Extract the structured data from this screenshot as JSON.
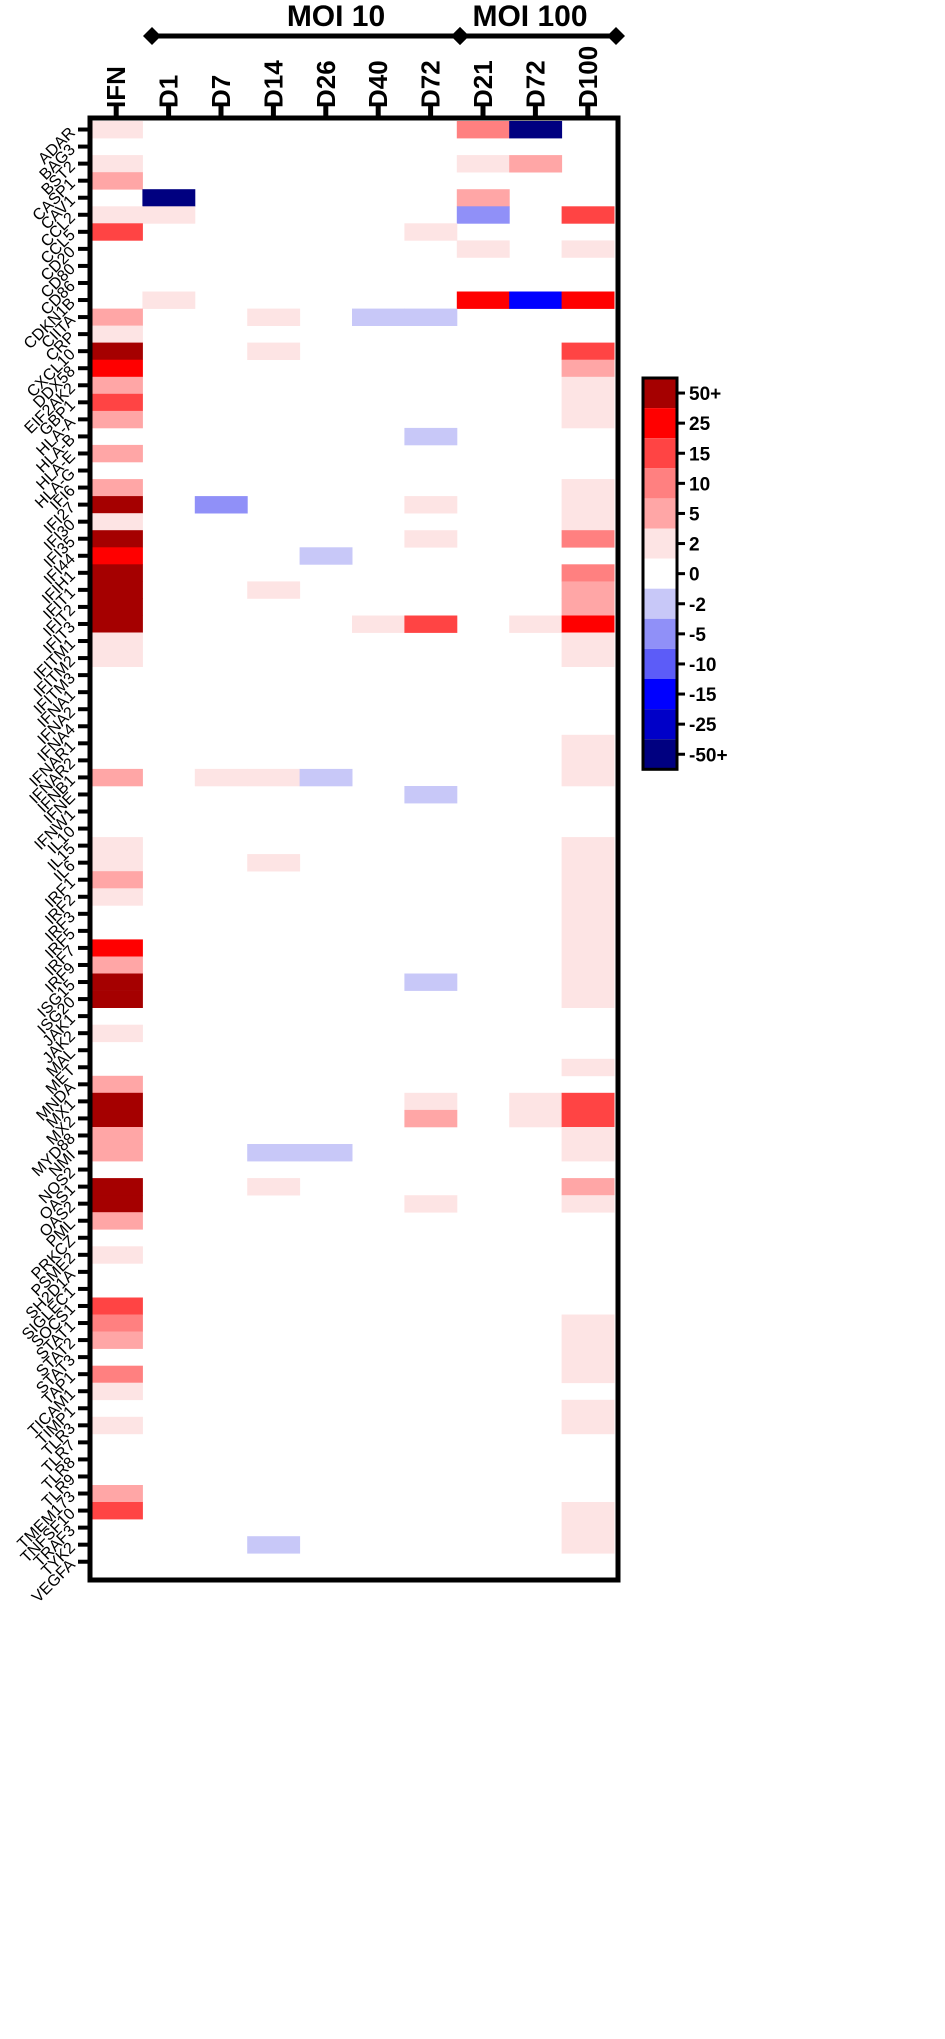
{
  "chart_data": {
    "type": "heatmap",
    "title": "",
    "xlabel": "",
    "ylabel": "",
    "groups": [
      {
        "label": "MOI 10",
        "columns": [
          "D1",
          "D7",
          "D14",
          "D26",
          "D40",
          "D72"
        ]
      },
      {
        "label": "MOI 100",
        "columns": [
          "D21",
          "D72",
          "D100"
        ]
      }
    ],
    "columns": [
      "IFN",
      "D1",
      "D7",
      "D14",
      "D26",
      "D40",
      "D72",
      "D21",
      "D72",
      "D100"
    ],
    "rows": [
      "ADAR",
      "BAG3",
      "BST2",
      "CASP1",
      "CAV1",
      "CCL2",
      "CCL5",
      "CD20",
      "CD80",
      "CD86",
      "CDKN1B",
      "CIITA",
      "CRP",
      "CXCL10",
      "DDX58",
      "EIF2AK2",
      "GBP1",
      "HLA-A",
      "HLA-B",
      "HLA-E",
      "HLA-G",
      "IFI6",
      "IFI27",
      "IFI30",
      "IFI35",
      "IFI44",
      "IFIH1",
      "IFIT1",
      "IFIT2",
      "IFIT3",
      "IFITM1",
      "IFITM2",
      "IFITM3",
      "IFNA1",
      "IFNA2",
      "IFNA4",
      "IFNAR1",
      "IFNAR2",
      "IFNB1",
      "IFNE",
      "IFNW1",
      "IL10",
      "IL15",
      "IL6",
      "IRF1",
      "IRF2",
      "IRF3",
      "IRF5",
      "IRF7",
      "IRF9",
      "ISG15",
      "ISG20",
      "JAK1",
      "JAK2",
      "MAL",
      "MET",
      "MNDA",
      "MX1",
      "MX2",
      "MYD88",
      "NMI",
      "NOS2",
      "OAS1",
      "OAS2",
      "PML",
      "PRKCZ",
      "PSME2",
      "SH2D1A",
      "SIGLEC1",
      "SOCS1",
      "STAT1",
      "STAT2",
      "STAT3",
      "TAP1",
      "TICAM1",
      "TIMP1",
      "TLR3",
      "TLR7",
      "TLR8",
      "TLR9",
      "TMEM173",
      "TNFSF10",
      "TRAF3",
      "TYK2",
      "VEGFA"
    ],
    "values": [
      [
        2,
        0,
        0,
        0,
        0,
        0,
        0,
        10,
        -50,
        0
      ],
      [
        0,
        0,
        0,
        0,
        0,
        0,
        0,
        0,
        0,
        0
      ],
      [
        2,
        0,
        0,
        0,
        0,
        0,
        0,
        2,
        5,
        0
      ],
      [
        5,
        0,
        0,
        0,
        0,
        0,
        0,
        0,
        0,
        0
      ],
      [
        0,
        -50,
        0,
        0,
        0,
        0,
        0,
        5,
        0,
        0
      ],
      [
        2,
        2,
        0,
        0,
        0,
        0,
        0,
        -5,
        0,
        15
      ],
      [
        15,
        0,
        0,
        0,
        0,
        0,
        2,
        0,
        0,
        0
      ],
      [
        0,
        0,
        0,
        0,
        0,
        0,
        0,
        2,
        0,
        2
      ],
      [
        0,
        0,
        0,
        0,
        0,
        0,
        0,
        0,
        0,
        0
      ],
      [
        0,
        0,
        0,
        0,
        0,
        0,
        0,
        0,
        0,
        0
      ],
      [
        0,
        2,
        0,
        0,
        0,
        0,
        0,
        25,
        -15,
        25
      ],
      [
        5,
        0,
        0,
        2,
        0,
        -2,
        -2,
        0,
        0,
        0
      ],
      [
        2,
        0,
        0,
        0,
        0,
        0,
        0,
        0,
        0,
        0
      ],
      [
        50,
        0,
        0,
        2,
        0,
        0,
        0,
        0,
        0,
        15
      ],
      [
        25,
        0,
        0,
        0,
        0,
        0,
        0,
        0,
        0,
        5
      ],
      [
        5,
        0,
        0,
        0,
        0,
        0,
        0,
        0,
        0,
        2
      ],
      [
        15,
        0,
        0,
        0,
        0,
        0,
        0,
        0,
        0,
        2
      ],
      [
        5,
        0,
        0,
        0,
        0,
        0,
        0,
        0,
        0,
        2
      ],
      [
        0,
        0,
        0,
        0,
        0,
        0,
        -2,
        0,
        0,
        0
      ],
      [
        5,
        0,
        0,
        0,
        0,
        0,
        0,
        0,
        0,
        0
      ],
      [
        0,
        0,
        0,
        0,
        0,
        0,
        0,
        0,
        0,
        0
      ],
      [
        5,
        0,
        0,
        0,
        0,
        0,
        0,
        0,
        0,
        2
      ],
      [
        50,
        0,
        -5,
        0,
        0,
        0,
        2,
        0,
        0,
        2
      ],
      [
        2,
        0,
        0,
        0,
        0,
        0,
        0,
        0,
        0,
        2
      ],
      [
        50,
        0,
        0,
        0,
        0,
        0,
        2,
        0,
        0,
        10
      ],
      [
        25,
        0,
        0,
        0,
        -2,
        0,
        0,
        0,
        0,
        0
      ],
      [
        50,
        0,
        0,
        0,
        0,
        0,
        0,
        0,
        0,
        10
      ],
      [
        50,
        0,
        0,
        2,
        0,
        0,
        0,
        0,
        0,
        5
      ],
      [
        50,
        0,
        0,
        0,
        0,
        0,
        0,
        0,
        0,
        5
      ],
      [
        50,
        0,
        0,
        0,
        0,
        2,
        15,
        0,
        2,
        25
      ],
      [
        2,
        0,
        0,
        0,
        0,
        0,
        0,
        0,
        0,
        2
      ],
      [
        2,
        0,
        0,
        0,
        0,
        0,
        0,
        0,
        0,
        2
      ],
      [
        0,
        0,
        0,
        0,
        0,
        0,
        0,
        0,
        0,
        0
      ],
      [
        0,
        0,
        0,
        0,
        0,
        0,
        0,
        0,
        0,
        0
      ],
      [
        0,
        0,
        0,
        0,
        0,
        0,
        0,
        0,
        0,
        0
      ],
      [
        0,
        0,
        0,
        0,
        0,
        0,
        0,
        0,
        0,
        0
      ],
      [
        0,
        0,
        0,
        0,
        0,
        0,
        0,
        0,
        0,
        2
      ],
      [
        0,
        0,
        0,
        0,
        0,
        0,
        0,
        0,
        0,
        2
      ],
      [
        5,
        0,
        2,
        2,
        -2,
        0,
        0,
        0,
        0,
        2
      ],
      [
        0,
        0,
        0,
        0,
        0,
        0,
        -2,
        0,
        0,
        0
      ],
      [
        0,
        0,
        0,
        0,
        0,
        0,
        0,
        0,
        0,
        0
      ],
      [
        0,
        0,
        0,
        0,
        0,
        0,
        0,
        0,
        0,
        0
      ],
      [
        2,
        0,
        0,
        0,
        0,
        0,
        0,
        0,
        0,
        2
      ],
      [
        2,
        0,
        0,
        2,
        0,
        0,
        0,
        0,
        0,
        2
      ],
      [
        5,
        0,
        0,
        0,
        0,
        0,
        0,
        0,
        0,
        2
      ],
      [
        2,
        0,
        0,
        0,
        0,
        0,
        0,
        0,
        0,
        2
      ],
      [
        0,
        0,
        0,
        0,
        0,
        0,
        0,
        0,
        0,
        2
      ],
      [
        0,
        0,
        0,
        0,
        0,
        0,
        0,
        0,
        0,
        2
      ],
      [
        25,
        0,
        0,
        0,
        0,
        0,
        0,
        0,
        0,
        2
      ],
      [
        5,
        0,
        0,
        0,
        0,
        0,
        0,
        0,
        0,
        2
      ],
      [
        50,
        0,
        0,
        0,
        0,
        0,
        -2,
        0,
        0,
        2
      ],
      [
        50,
        0,
        0,
        0,
        0,
        0,
        0,
        0,
        0,
        2
      ],
      [
        0,
        0,
        0,
        0,
        0,
        0,
        0,
        0,
        0,
        0
      ],
      [
        2,
        0,
        0,
        0,
        0,
        0,
        0,
        0,
        0,
        0
      ],
      [
        0,
        0,
        0,
        0,
        0,
        0,
        0,
        0,
        0,
        0
      ],
      [
        0,
        0,
        0,
        0,
        0,
        0,
        0,
        0,
        0,
        2
      ],
      [
        5,
        0,
        0,
        0,
        0,
        0,
        0,
        0,
        0,
        0
      ],
      [
        50,
        0,
        0,
        0,
        0,
        0,
        2,
        0,
        2,
        15
      ],
      [
        50,
        0,
        0,
        0,
        0,
        0,
        5,
        0,
        2,
        15
      ],
      [
        5,
        0,
        0,
        0,
        0,
        0,
        0,
        0,
        0,
        2
      ],
      [
        5,
        0,
        0,
        -2,
        -2,
        0,
        0,
        0,
        0,
        2
      ],
      [
        0,
        0,
        0,
        0,
        0,
        0,
        0,
        0,
        0,
        0
      ],
      [
        50,
        0,
        0,
        2,
        0,
        0,
        0,
        0,
        0,
        5
      ],
      [
        50,
        0,
        0,
        0,
        0,
        0,
        2,
        0,
        0,
        2
      ],
      [
        5,
        0,
        0,
        0,
        0,
        0,
        0,
        0,
        0,
        0
      ],
      [
        0,
        0,
        0,
        0,
        0,
        0,
        0,
        0,
        0,
        0
      ],
      [
        2,
        0,
        0,
        0,
        0,
        0,
        0,
        0,
        0,
        0
      ],
      [
        0,
        0,
        0,
        0,
        0,
        0,
        0,
        0,
        0,
        0
      ],
      [
        0,
        0,
        0,
        0,
        0,
        0,
        0,
        0,
        0,
        0
      ],
      [
        15,
        0,
        0,
        0,
        0,
        0,
        0,
        0,
        0,
        0
      ],
      [
        10,
        0,
        0,
        0,
        0,
        0,
        0,
        0,
        0,
        2
      ],
      [
        5,
        0,
        0,
        0,
        0,
        0,
        0,
        0,
        0,
        2
      ],
      [
        0,
        0,
        0,
        0,
        0,
        0,
        0,
        0,
        0,
        2
      ],
      [
        10,
        0,
        0,
        0,
        0,
        0,
        0,
        0,
        0,
        2
      ],
      [
        2,
        0,
        0,
        0,
        0,
        0,
        0,
        0,
        0,
        0
      ],
      [
        0,
        0,
        0,
        0,
        0,
        0,
        0,
        0,
        0,
        2
      ],
      [
        2,
        0,
        0,
        0,
        0,
        0,
        0,
        0,
        0,
        2
      ],
      [
        0,
        0,
        0,
        0,
        0,
        0,
        0,
        0,
        0,
        0
      ],
      [
        0,
        0,
        0,
        0,
        0,
        0,
        0,
        0,
        0,
        0
      ],
      [
        0,
        0,
        0,
        0,
        0,
        0,
        0,
        0,
        0,
        0
      ],
      [
        5,
        0,
        0,
        0,
        0,
        0,
        0,
        0,
        0,
        0
      ],
      [
        15,
        0,
        0,
        0,
        0,
        0,
        0,
        0,
        0,
        2
      ],
      [
        0,
        0,
        0,
        0,
        0,
        0,
        0,
        0,
        0,
        2
      ],
      [
        0,
        0,
        0,
        -2,
        0,
        0,
        0,
        0,
        0,
        2
      ],
      [
        0,
        0,
        0,
        0,
        0,
        0,
        0,
        0,
        0,
        0
      ]
    ],
    "legend": {
      "placement": "right",
      "levels": [
        {
          "label": "50+",
          "color": "#a50000"
        },
        {
          "label": "25",
          "color": "#ff0000"
        },
        {
          "label": "15",
          "color": "#ff4444"
        },
        {
          "label": "10",
          "color": "#ff8080"
        },
        {
          "label": "5",
          "color": "#ffa6a6"
        },
        {
          "label": "2",
          "color": "#fde4e4"
        },
        {
          "label": "0",
          "color": "#ffffff"
        },
        {
          "label": "-2",
          "color": "#c8c8f8"
        },
        {
          "label": "-5",
          "color": "#9090f8"
        },
        {
          "label": "-10",
          "color": "#5c5cf8"
        },
        {
          "label": "-15",
          "color": "#0000ff"
        },
        {
          "label": "-25",
          "color": "#0000c8"
        },
        {
          "label": "-50+",
          "color": "#000080"
        }
      ]
    },
    "grid": false
  }
}
